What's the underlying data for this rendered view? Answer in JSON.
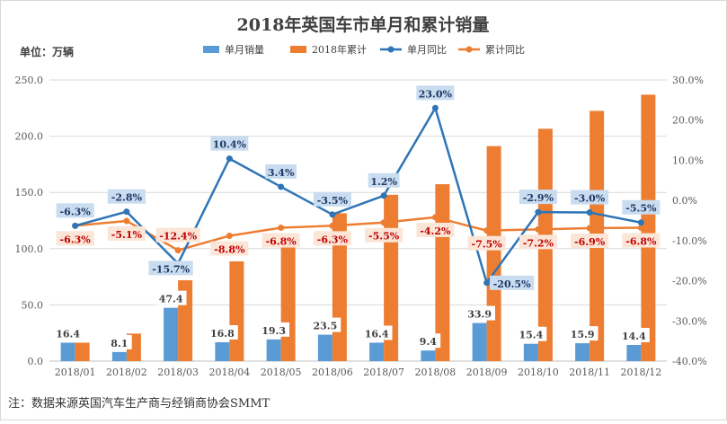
{
  "chart_data": {
    "type": "bar",
    "title": "2018年英国车市单月和累计销量",
    "unit_label": "单位：万辆",
    "footnote": "注：数据来源英国汽车生产商与经销商协会SMMT",
    "categories": [
      "2018/01",
      "2018/02",
      "2018/03",
      "2018/04",
      "2018/05",
      "2018/06",
      "2018/07",
      "2018/08",
      "2018/09",
      "2018/10",
      "2018/11",
      "2018/12"
    ],
    "y_left": {
      "lim": [
        0,
        250
      ],
      "ticks": [
        0,
        50,
        100,
        150,
        200,
        250
      ],
      "tick_labels": [
        "0.0",
        "50.0",
        "100.0",
        "150.0",
        "200.0",
        "250.0"
      ]
    },
    "y_right": {
      "lim": [
        -40,
        30
      ],
      "ticks": [
        -40,
        -30,
        -20,
        -10,
        0,
        10,
        20,
        30
      ],
      "tick_labels": [
        "-40.0%",
        "-30.0%",
        "-20.0%",
        "-10.0%",
        "0.0%",
        "10.0%",
        "20.0%",
        "30.0%"
      ]
    },
    "legend_position": "top",
    "gridlines": true,
    "series": [
      {
        "name": "单月销量",
        "type": "bar",
        "axis": "left",
        "color": "#5B9BD5",
        "values": [
          16.4,
          8.1,
          47.4,
          16.8,
          19.3,
          23.5,
          16.4,
          9.4,
          33.9,
          15.4,
          15.9,
          14.4
        ],
        "labels": [
          "16.4",
          "8.1",
          "47.4",
          "16.8",
          "19.3",
          "23.5",
          "16.4",
          "9.4",
          "33.9",
          "15.4",
          "15.9",
          "14.4"
        ]
      },
      {
        "name": "2018年累计",
        "type": "bar",
        "axis": "left",
        "color": "#ED7D31",
        "values": [
          16.4,
          24.5,
          71.9,
          88.7,
          108.0,
          131.5,
          147.9,
          157.3,
          191.2,
          206.6,
          222.5,
          236.9
        ]
      },
      {
        "name": "单月同比",
        "type": "line",
        "axis": "right",
        "color": "#2E75B6",
        "values": [
          -6.3,
          -2.8,
          -15.7,
          10.4,
          3.4,
          -3.5,
          1.2,
          23.0,
          -20.5,
          -2.9,
          -3.0,
          -5.5
        ],
        "labels": [
          "-6.3%",
          "-2.8%",
          "-15.7%",
          "10.4%",
          "3.4%",
          "-3.5%",
          "1.2%",
          "23.0%",
          "-20.5%",
          "-2.9%",
          "-3.0%",
          "-5.5%"
        ]
      },
      {
        "name": "累计同比",
        "type": "line",
        "axis": "right",
        "color": "#ED7D31",
        "values": [
          -6.3,
          -5.1,
          -12.4,
          -8.8,
          -6.8,
          -6.3,
          -5.5,
          -4.2,
          -7.5,
          -7.2,
          -6.9,
          -6.8
        ],
        "labels": [
          "-6.3%",
          "-5.1%",
          "-12.4%",
          "-8.8%",
          "-6.8%",
          "-6.3%",
          "-5.5%",
          "-4.2%",
          "-7.5%",
          "-7.2%",
          "-6.9%",
          "-6.8%"
        ]
      }
    ]
  }
}
